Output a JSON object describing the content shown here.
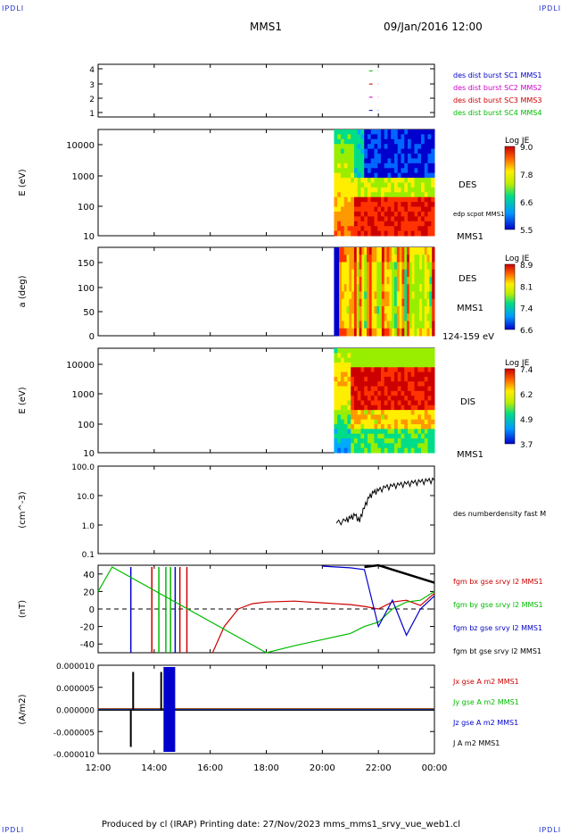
{
  "corners": {
    "tl": "IPDLI",
    "tr": "IPDLI",
    "bl": "IPDLI",
    "br": "IPDLI"
  },
  "header": {
    "title": "MMS1",
    "date": "09/Jan/2016 12:00"
  },
  "footer": {
    "text": "Produced by cl (IRAP)   Printing date: 27/Nov/2023   mms_mms1_srvy_vue_web1.cl"
  },
  "time_axis": {
    "ticks": [
      "12:00",
      "14:00",
      "16:00",
      "18:00",
      "20:00",
      "22:00",
      "00:00"
    ]
  },
  "panels": {
    "p1": {
      "yticks": [
        "4",
        "3",
        "2",
        "1"
      ],
      "legend": [
        {
          "label": "des dist burst SC1 MMS1",
          "color": "#0000cc"
        },
        {
          "label": "des dist burst SC2 MMS2",
          "color": "#cc00cc"
        },
        {
          "label": "des dist burst SC3 MMS3",
          "color": "#cc0000"
        },
        {
          "label": "des dist burst SC4 MMS4",
          "color": "#00bb00"
        }
      ]
    },
    "p2": {
      "ylabel": "E (eV)",
      "yticks": [
        "10000",
        "1000",
        "100",
        "10"
      ],
      "label1": "DES",
      "label2": "edp scpot MMS1",
      "label3": "MMS1",
      "cbar_title": "Log JE",
      "cbar_ticks": [
        "9.0",
        "7.8",
        "6.6",
        "5.5"
      ]
    },
    "p3": {
      "ylabel": "a (deg)",
      "yticks": [
        "150",
        "100",
        "50",
        "0"
      ],
      "label1": "DES",
      "label2": "MMS1",
      "label3": "124-159 eV",
      "cbar_title": "Log JE",
      "cbar_ticks": [
        "8.9",
        "8.1",
        "7.4",
        "6.6"
      ]
    },
    "p4": {
      "ylabel": "E (eV)",
      "yticks": [
        "10000",
        "1000",
        "100",
        "10"
      ],
      "label1": "DIS",
      "label2": "MMS1",
      "cbar_title": "Log JE",
      "cbar_ticks": [
        "7.4",
        "6.2",
        "4.9",
        "3.7"
      ]
    },
    "p5": {
      "ylabel": "(cm^-3)",
      "yticks": [
        "100.0",
        "10.0",
        "1.0",
        "0.1"
      ],
      "label1": "des numberdensity fast M"
    },
    "p6": {
      "ylabel": "(nT)",
      "yticks": [
        "40",
        "20",
        "0",
        "-20",
        "-40"
      ],
      "legend": [
        {
          "label": "fgm bx gse srvy l2 MMS1",
          "color": "#cc0000"
        },
        {
          "label": "fgm by gse srvy l2 MMS1",
          "color": "#00bb00"
        },
        {
          "label": "fgm bz gse srvy l2 MMS1",
          "color": "#0000cc"
        },
        {
          "label": "fgm bt gse srvy l2 MMS1",
          "color": "#000000"
        }
      ]
    },
    "p7": {
      "ylabel": "(A/m2)",
      "yticks": [
        "0.000010",
        "0.000005",
        "0.000000",
        "-0.000005",
        "-0.000010"
      ],
      "legend": [
        {
          "label": "Jx gse A m2 MMS1",
          "color": "#cc0000"
        },
        {
          "label": "Jy gse A m2 MMS1",
          "color": "#00bb00"
        },
        {
          "label": "Jz gse A m2 MMS1",
          "color": "#0000cc"
        },
        {
          "label": "J A m2 MMS1",
          "color": "#000000"
        }
      ]
    }
  },
  "chart_data": [
    {
      "type": "line",
      "panel": "burst availability",
      "x_range": [
        "12:00",
        "00:00"
      ],
      "ylim": [
        0.5,
        4.5
      ],
      "series": [
        {
          "name": "des dist burst SC1 MMS1",
          "y": 1,
          "x_start": "21:40",
          "x_end": "22:00"
        },
        {
          "name": "des dist burst SC2 MMS2",
          "y": 2,
          "x_start": "21:40",
          "x_end": "22:00"
        },
        {
          "name": "des dist burst SC3 MMS3",
          "y": 3,
          "x_start": "21:40",
          "x_end": "22:00"
        },
        {
          "name": "des dist burst SC4 MMS4",
          "y": 4,
          "x_start": "21:40",
          "x_end": "22:00"
        }
      ]
    },
    {
      "type": "heatmap",
      "panel": "DES energy spectrogram",
      "ylabel": "E (eV)",
      "yscale": "log",
      "ylim": [
        10,
        30000
      ],
      "x_start": "20:25",
      "x_end": "00:00",
      "colorbar": {
        "title": "Log JE",
        "range": [
          5.5,
          9.0
        ]
      }
    },
    {
      "type": "heatmap",
      "panel": "DES pitch angle 124-159 eV",
      "ylabel": "a (deg)",
      "ylim": [
        0,
        180
      ],
      "x_start": "20:25",
      "x_end": "00:00",
      "colorbar": {
        "title": "Log JE",
        "range": [
          6.6,
          8.9
        ]
      }
    },
    {
      "type": "heatmap",
      "panel": "DIS energy spectrogram",
      "ylabel": "E (eV)",
      "yscale": "log",
      "ylim": [
        10,
        30000
      ],
      "x_start": "20:25",
      "x_end": "00:00",
      "colorbar": {
        "title": "Log JE",
        "range": [
          3.7,
          7.4
        ]
      }
    },
    {
      "type": "line",
      "panel": "DES number density",
      "ylabel": "(cm^-3)",
      "yscale": "log",
      "ylim": [
        0.1,
        100
      ],
      "series": [
        {
          "name": "des numberdensity fast M",
          "x": [
            "20:30",
            "20:50",
            "21:00",
            "21:10",
            "21:20",
            "21:30",
            "21:40",
            "21:50",
            "22:00",
            "22:15",
            "22:30",
            "22:45",
            "23:00",
            "23:15",
            "23:30",
            "23:45",
            "00:00"
          ],
          "y": [
            1.1,
            1.3,
            1.6,
            2.0,
            1.2,
            3.5,
            8.0,
            12.0,
            14.0,
            18.0,
            20.0,
            22.0,
            24.0,
            26.0,
            28.0,
            30.0,
            32.0
          ]
        }
      ]
    },
    {
      "type": "line",
      "panel": "FGM magnetic field",
      "ylabel": "(nT)",
      "ylim": [
        -50,
        50
      ],
      "series": [
        {
          "name": "fgm bx gse srvy l2 MMS1",
          "x": [
            "16:05",
            "16:30",
            "17:00",
            "17:30",
            "18:00",
            "19:00",
            "20:00",
            "21:00",
            "21:30",
            "22:00",
            "22:30",
            "23:00",
            "23:30",
            "00:00"
          ],
          "y": [
            -50,
            -20,
            0,
            6,
            8,
            9,
            7,
            5,
            3,
            0,
            8,
            10,
            4,
            18
          ]
        },
        {
          "name": "fgm by gse srvy l2 MMS1",
          "x": [
            "12:00",
            "12:30",
            "18:00",
            "19:00",
            "20:00",
            "21:00",
            "21:30",
            "22:00",
            "22:30",
            "23:00",
            "23:30",
            "00:00"
          ],
          "y": [
            20,
            48,
            -50,
            -42,
            -35,
            -28,
            -20,
            -15,
            0,
            8,
            10,
            20
          ]
        },
        {
          "name": "fgm bz gse srvy l2 MMS1",
          "x": [
            "20:00",
            "20:30",
            "21:00",
            "21:30",
            "22:00",
            "22:30",
            "23:00",
            "23:30",
            "00:00"
          ],
          "y": [
            49,
            48,
            47,
            45,
            -20,
            10,
            -30,
            0,
            15
          ]
        },
        {
          "name": "fgm bt gse srvy l2 MMS1",
          "x": [
            "21:30",
            "22:00",
            "22:30",
            "23:00",
            "23:30",
            "00:00"
          ],
          "y": [
            48,
            50,
            45,
            40,
            35,
            30
          ]
        }
      ]
    },
    {
      "type": "line",
      "panel": "Current density",
      "ylabel": "(A/m2)",
      "ylim": [
        -1e-05,
        1e-05
      ],
      "series": [
        {
          "name": "Jx gse A m2 MMS1",
          "x": [
            "12:00",
            "00:00"
          ],
          "y": [
            0,
            0
          ]
        },
        {
          "name": "Jy gse A m2 MMS1",
          "x": [
            "12:00",
            "00:00"
          ],
          "y": [
            0,
            0
          ]
        },
        {
          "name": "Jz gse A m2 MMS1",
          "x": [
            "12:00",
            "00:00"
          ],
          "y": [
            0,
            0
          ]
        },
        {
          "name": "J A m2 MMS1",
          "x": [
            "12:00",
            "00:00"
          ],
          "y": [
            0,
            0
          ]
        }
      ]
    }
  ]
}
